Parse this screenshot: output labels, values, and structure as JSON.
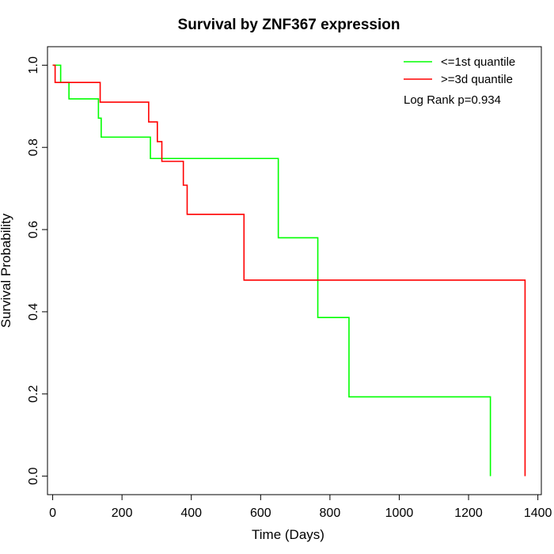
{
  "chart_data": {
    "type": "line",
    "title": "Survival by ZNF367 expression",
    "xlabel": "Time (Days)",
    "ylabel": "Survival Probability",
    "xlim": [
      -15,
      1410
    ],
    "ylim": [
      -0.045,
      1.045
    ],
    "x_ticks": [
      0,
      200,
      400,
      600,
      800,
      1000,
      1200,
      1400
    ],
    "y_ticks": [
      0.0,
      0.2,
      0.4,
      0.6,
      0.8,
      1.0
    ],
    "x_tick_labels": [
      "0",
      "200",
      "400",
      "600",
      "800",
      "1000",
      "1200",
      "1400"
    ],
    "y_tick_labels": [
      "0.0",
      "0.2",
      "0.4",
      "0.6",
      "0.8",
      "1.0"
    ],
    "grid": false,
    "legend_position": "top-right",
    "annotation": "Log Rank p=0.934",
    "series": [
      {
        "name": "<=1st quantile",
        "color": "#00ff00",
        "step": true,
        "x": [
          0,
          23,
          47,
          132,
          140,
          282,
          651,
          765,
          855,
          1263,
          1263
        ],
        "y": [
          1.0,
          0.958,
          0.918,
          0.871,
          0.825,
          0.773,
          0.58,
          0.386,
          0.193,
          0.0,
          0.0
        ]
      },
      {
        "name": ">=3d quantile",
        "color": "#ff0000",
        "step": true,
        "x": [
          0,
          7,
          137,
          277,
          302,
          315,
          377,
          388,
          552,
          1363,
          1363
        ],
        "y": [
          1.0,
          0.958,
          0.91,
          0.862,
          0.814,
          0.766,
          0.708,
          0.637,
          0.477,
          0.0,
          0.0
        ]
      }
    ]
  }
}
